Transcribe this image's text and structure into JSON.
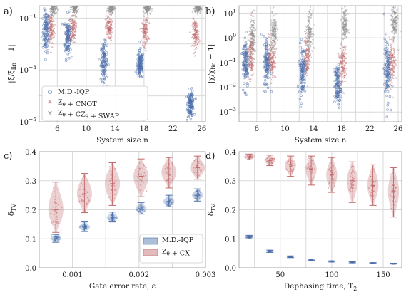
{
  "colors": {
    "blue": "#4a6ea9",
    "red": "#c0686a",
    "gray": "#8f8f8f",
    "grid": "#d9d9d9",
    "bg": "#ffffff"
  },
  "chart_data": [
    {
      "panel": "a)",
      "type": "scatter",
      "xlabel": "System size n",
      "ylabel": "|ξ/ξ_lin − 1|",
      "ylabel_parts": {
        "pre": "|ξ/ξ",
        "sub": "lin",
        "post": " − 1|"
      },
      "xscale": "linear",
      "yscale": "log",
      "xlim": [
        3.5,
        26.5
      ],
      "ylim": [
        1e-05,
        0.3
      ],
      "xticks": [
        6,
        10,
        14,
        18,
        22,
        26
      ],
      "yticks": [
        1e-05,
        0.001,
        0.1
      ],
      "ytick_labels": [
        {
          "base": "10",
          "exp": "−5"
        },
        {
          "base": "10",
          "exp": "−3"
        },
        {
          "base": "10",
          "exp": "−1"
        }
      ],
      "legend": {
        "position": "lower-left",
        "entries": [
          {
            "label": "M.D.-IQP",
            "marker": "circle",
            "color": "#4a6ea9"
          },
          {
            "label": "Z_θ + CNOT",
            "marker": "tri",
            "color": "#c0686a"
          },
          {
            "label": "Z_θ + CZ_θ + SWAP",
            "marker": "tri-down",
            "color": "#8f8f8f"
          }
        ]
      },
      "series": [
        {
          "name": "M.D.-IQP",
          "marker": "circle",
          "color": "#4a6ea9",
          "clusters": [
            {
              "x": 5,
              "center": 0.03,
              "spread_decades": 0.9
            },
            {
              "x": 8,
              "center": 0.02,
              "spread_decades": 0.9
            },
            {
              "x": 13,
              "center": 0.002,
              "spread_decades": 0.8
            },
            {
              "x": 18,
              "center": 0.0015,
              "spread_decades": 0.6
            },
            {
              "x": 25,
              "center": 5e-05,
              "spread_decades": 0.55
            }
          ]
        },
        {
          "name": "Z_θ + CNOT",
          "marker": "tri",
          "color": "#c0686a",
          "clusters": [
            {
              "x": 5,
              "center": 0.04,
              "spread_decades": 0.7
            },
            {
              "x": 8,
              "center": 0.04,
              "spread_decades": 0.6
            },
            {
              "x": 13,
              "center": 0.04,
              "spread_decades": 0.55
            },
            {
              "x": 18,
              "center": 0.03,
              "spread_decades": 0.6
            },
            {
              "x": 25,
              "center": 0.025,
              "spread_decades": 0.6
            }
          ]
        },
        {
          "name": "Z_θ + CZ_θ + SWAP",
          "marker": "tri-down",
          "color": "#8f8f8f",
          "clusters": [
            {
              "x": 5,
              "center": 0.25,
              "spread_decades": 0.3
            },
            {
              "x": 8,
              "center": 0.25,
              "spread_decades": 0.3
            },
            {
              "x": 13,
              "center": 0.25,
              "spread_decades": 0.25
            },
            {
              "x": 18,
              "center": 0.25,
              "spread_decades": 0.25
            },
            {
              "x": 25,
              "center": 0.25,
              "spread_decades": 0.25
            }
          ]
        }
      ]
    },
    {
      "panel": "b)",
      "type": "scatter",
      "xlabel": "System size n",
      "ylabel": "|χ/χ_lin − 1|",
      "ylabel_parts": {
        "pre": "|χ/χ",
        "sub": "lin",
        "post": " − 1|"
      },
      "xscale": "linear",
      "yscale": "log",
      "xlim": [
        3.5,
        26.5
      ],
      "ylim": [
        0.0004,
        20
      ],
      "xticks": [
        6,
        8,
        10,
        12,
        14,
        16,
        18,
        20,
        22,
        24,
        26
      ],
      "xtick_labels": [
        6,
        10,
        14,
        18,
        22,
        26
      ],
      "yticks": [
        0.001,
        0.01,
        0.1,
        1,
        10
      ],
      "ytick_labels": [
        {
          "base": "10",
          "exp": "−3"
        },
        {
          "base": "10",
          "exp": "−2"
        },
        {
          "base": "10",
          "exp": "−1"
        },
        {
          "base": "10",
          "exp": "0"
        },
        {
          "base": "10",
          "exp": "1"
        }
      ],
      "series": [
        {
          "name": "M.D.-IQP",
          "marker": "circle",
          "color": "#4a6ea9",
          "clusters": [
            {
              "x": 5,
              "center": 0.12,
              "spread_decades": 1.2
            },
            {
              "x": 8,
              "center": 0.1,
              "spread_decades": 1.2
            },
            {
              "x": 13,
              "center": 0.05,
              "spread_decades": 1.1
            },
            {
              "x": 18,
              "center": 0.012,
              "spread_decades": 0.9
            },
            {
              "x": 25,
              "center": 0.05,
              "spread_decades": 1.4
            }
          ]
        },
        {
          "name": "Z_θ + CNOT",
          "marker": "tri",
          "color": "#c0686a",
          "clusters": [
            {
              "x": 5,
              "center": 0.2,
              "spread_decades": 1.0
            },
            {
              "x": 8,
              "center": 0.15,
              "spread_decades": 1.0
            },
            {
              "x": 13,
              "center": 0.2,
              "spread_decades": 0.9
            },
            {
              "x": 18,
              "center": 0.1,
              "spread_decades": 0.9
            },
            {
              "x": 25,
              "center": 0.1,
              "spread_decades": 1.0
            }
          ]
        },
        {
          "name": "Z_θ + CZ_θ + SWAP",
          "marker": "tri-down",
          "color": "#8f8f8f",
          "clusters": [
            {
              "x": 5,
              "center": 1.0,
              "spread_decades": 0.9
            },
            {
              "x": 8,
              "center": 1.5,
              "spread_decades": 0.9
            },
            {
              "x": 13,
              "center": 2.0,
              "spread_decades": 0.9
            },
            {
              "x": 18,
              "center": 3.0,
              "spread_decades": 0.8
            },
            {
              "x": 25,
              "center": 4.0,
              "spread_decades": 0.8
            }
          ]
        }
      ]
    },
    {
      "panel": "c)",
      "type": "violin",
      "xlabel": "Gate error rate, ε",
      "ylabel": "δ_TV",
      "ylabel_parts": {
        "pre": "δ",
        "sub": "TV",
        "post": ""
      },
      "xscale": "linear",
      "yscale": "linear",
      "xlim": [
        0.0005,
        0.003
      ],
      "ylim": [
        0.0,
        0.4
      ],
      "xticks": [
        0.001,
        0.002,
        0.003
      ],
      "xtick_labels": [
        "0.001",
        "0.002",
        "0.003"
      ],
      "xminor": [
        0.0005,
        0.0015,
        0.0025
      ],
      "yticks": [
        0.0,
        0.1,
        0.2,
        0.3,
        0.4
      ],
      "ytick_labels": [
        "0.0",
        "0.1",
        "0.2",
        "0.3",
        "0.4"
      ],
      "legend": {
        "position": "lower-right",
        "entries": [
          {
            "label": "M.D.-IQP",
            "color": "#4a6ea9"
          },
          {
            "label": "Z_θ + CX",
            "color": "#c0686a"
          }
        ]
      },
      "series": [
        {
          "name": "M.D.-IQP",
          "color": "#4a6ea9",
          "violins": [
            {
              "x": 0.00075,
              "center": 0.101,
              "min": 0.088,
              "max": 0.115,
              "halfwidth": 7e-05
            },
            {
              "x": 0.00118,
              "center": 0.14,
              "min": 0.125,
              "max": 0.158,
              "halfwidth": 7e-05
            },
            {
              "x": 0.0016,
              "center": 0.172,
              "min": 0.158,
              "max": 0.192,
              "halfwidth": 7e-05
            },
            {
              "x": 0.00203,
              "center": 0.203,
              "min": 0.185,
              "max": 0.225,
              "halfwidth": 7e-05
            },
            {
              "x": 0.00245,
              "center": 0.228,
              "min": 0.21,
              "max": 0.25,
              "halfwidth": 7e-05
            },
            {
              "x": 0.00288,
              "center": 0.25,
              "min": 0.23,
              "max": 0.272,
              "halfwidth": 7e-05
            }
          ]
        },
        {
          "name": "Z_θ + CX",
          "color": "#c0686a",
          "violins": [
            {
              "x": 0.00075,
              "center": 0.2,
              "min": 0.122,
              "max": 0.295,
              "halfwidth": 0.0001
            },
            {
              "x": 0.00118,
              "center": 0.255,
              "min": 0.19,
              "max": 0.325,
              "halfwidth": 0.0001
            },
            {
              "x": 0.0016,
              "center": 0.29,
              "min": 0.215,
              "max": 0.362,
              "halfwidth": 0.0001
            },
            {
              "x": 0.00203,
              "center": 0.315,
              "min": 0.245,
              "max": 0.375,
              "halfwidth": 0.0001
            },
            {
              "x": 0.00245,
              "center": 0.33,
              "min": 0.275,
              "max": 0.38,
              "halfwidth": 0.0001
            },
            {
              "x": 0.00288,
              "center": 0.345,
              "min": 0.305,
              "max": 0.385,
              "halfwidth": 0.0001
            }
          ]
        }
      ]
    },
    {
      "panel": "d)",
      "type": "violin",
      "xlabel": "Dephasing time, T_2",
      "xlabel_parts": {
        "pre": "Dephasing time, T",
        "sub": "2",
        "post": ""
      },
      "ylabel": "δ_TV",
      "ylabel_parts": {
        "pre": "δ",
        "sub": "TV",
        "post": ""
      },
      "xscale": "linear",
      "yscale": "linear",
      "xlim": [
        10,
        168
      ],
      "ylim": [
        0.0,
        0.4
      ],
      "xticks": [
        50,
        100,
        150
      ],
      "xtick_labels": [
        "50",
        "100",
        "150"
      ],
      "xminor": [
        25,
        75,
        125
      ],
      "yticks": [
        0.0,
        0.1,
        0.2,
        0.3,
        0.4
      ],
      "ytick_labels": [
        "0.0",
        "0.1",
        "0.2",
        "0.3",
        "0.4"
      ],
      "series": [
        {
          "name": "M.D.-IQP",
          "color": "#4a6ea9",
          "violins": [
            {
              "x": 20,
              "center": 0.106,
              "min": 0.1,
              "max": 0.112,
              "halfwidth": 3.5
            },
            {
              "x": 40,
              "center": 0.057,
              "min": 0.053,
              "max": 0.061,
              "halfwidth": 3.0
            },
            {
              "x": 60,
              "center": 0.038,
              "min": 0.035,
              "max": 0.041,
              "halfwidth": 3.0
            },
            {
              "x": 80,
              "center": 0.028,
              "min": 0.026,
              "max": 0.03,
              "halfwidth": 2.5
            },
            {
              "x": 100,
              "center": 0.022,
              "min": 0.02,
              "max": 0.024,
              "halfwidth": 2.5
            },
            {
              "x": 120,
              "center": 0.019,
              "min": 0.017,
              "max": 0.021,
              "halfwidth": 2.5
            },
            {
              "x": 140,
              "center": 0.016,
              "min": 0.015,
              "max": 0.018,
              "halfwidth": 2.5
            },
            {
              "x": 160,
              "center": 0.014,
              "min": 0.013,
              "max": 0.016,
              "halfwidth": 2.5
            }
          ]
        },
        {
          "name": "Z_θ + CX",
          "color": "#c0686a",
          "violins": [
            {
              "x": 20,
              "center": 0.383,
              "min": 0.372,
              "max": 0.392,
              "halfwidth": 4.5
            },
            {
              "x": 40,
              "center": 0.37,
              "min": 0.352,
              "max": 0.388,
              "halfwidth": 4.5
            },
            {
              "x": 60,
              "center": 0.355,
              "min": 0.315,
              "max": 0.385,
              "halfwidth": 4.5
            },
            {
              "x": 80,
              "center": 0.34,
              "min": 0.285,
              "max": 0.385,
              "halfwidth": 4.5
            },
            {
              "x": 100,
              "center": 0.32,
              "min": 0.26,
              "max": 0.38,
              "halfwidth": 4.5
            },
            {
              "x": 120,
              "center": 0.3,
              "min": 0.225,
              "max": 0.365,
              "halfwidth": 4.5
            },
            {
              "x": 140,
              "center": 0.283,
              "min": 0.215,
              "max": 0.355,
              "halfwidth": 4.5
            },
            {
              "x": 160,
              "center": 0.265,
              "min": 0.175,
              "max": 0.345,
              "halfwidth": 4.5
            }
          ]
        }
      ]
    }
  ]
}
